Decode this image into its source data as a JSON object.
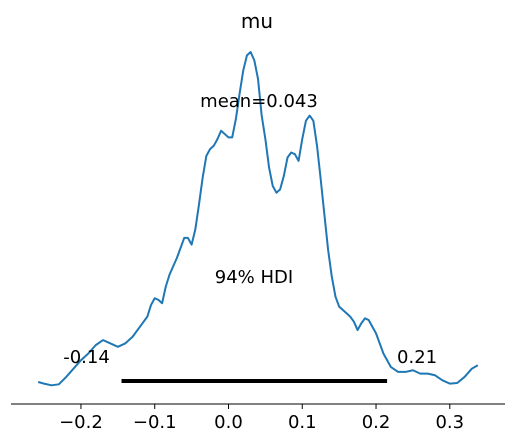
{
  "chart_data": {
    "type": "line",
    "title": "mu",
    "xlabel": "",
    "ylabel": "",
    "xlim": [
      -0.265,
      0.345
    ],
    "ylim": [
      0,
      1
    ],
    "grid": false,
    "x_ticks": [
      "−0.2",
      "−0.1",
      "0.0",
      "0.1",
      "0.2",
      "0.3"
    ],
    "x_tick_values": [
      -0.2,
      -0.1,
      0.0,
      0.1,
      0.2,
      0.3
    ],
    "annotations": {
      "mean_label": "mean=0.043",
      "hdi_label": "94% HDI",
      "hdi_lower_label": "-0.14",
      "hdi_upper_label": "0.21"
    },
    "hdi": [
      -0.145,
      0.215
    ],
    "series": [
      {
        "color": "#1f77b4",
        "x": [
          -0.258,
          -0.25,
          -0.24,
          -0.23,
          -0.22,
          -0.21,
          -0.2,
          -0.19,
          -0.18,
          -0.17,
          -0.16,
          -0.15,
          -0.14,
          -0.13,
          -0.12,
          -0.11,
          -0.105,
          -0.1,
          -0.095,
          -0.09,
          -0.085,
          -0.08,
          -0.07,
          -0.06,
          -0.055,
          -0.05,
          -0.045,
          -0.04,
          -0.035,
          -0.03,
          -0.025,
          -0.02,
          -0.015,
          -0.01,
          -0.005,
          0.0,
          0.005,
          0.01,
          0.015,
          0.02,
          0.025,
          0.03,
          0.035,
          0.04,
          0.045,
          0.05,
          0.055,
          0.06,
          0.065,
          0.07,
          0.075,
          0.08,
          0.085,
          0.09,
          0.095,
          0.1,
          0.105,
          0.11,
          0.115,
          0.12,
          0.125,
          0.13,
          0.135,
          0.14,
          0.145,
          0.15,
          0.16,
          0.165,
          0.17,
          0.175,
          0.18,
          0.185,
          0.19,
          0.2,
          0.21,
          0.22,
          0.23,
          0.24,
          0.25,
          0.26,
          0.27,
          0.28,
          0.29,
          0.3,
          0.31,
          0.32,
          0.33,
          0.338
        ],
        "y": [
          0.015,
          0.01,
          0.005,
          0.008,
          0.03,
          0.055,
          0.08,
          0.1,
          0.125,
          0.14,
          0.13,
          0.12,
          0.13,
          0.15,
          0.18,
          0.21,
          0.245,
          0.265,
          0.26,
          0.25,
          0.3,
          0.335,
          0.385,
          0.445,
          0.445,
          0.425,
          0.47,
          0.545,
          0.625,
          0.69,
          0.71,
          0.72,
          0.74,
          0.765,
          0.755,
          0.745,
          0.745,
          0.8,
          0.875,
          0.945,
          0.99,
          1.0,
          0.975,
          0.92,
          0.81,
          0.74,
          0.655,
          0.6,
          0.58,
          0.59,
          0.63,
          0.685,
          0.7,
          0.695,
          0.675,
          0.74,
          0.795,
          0.81,
          0.795,
          0.72,
          0.62,
          0.515,
          0.41,
          0.33,
          0.27,
          0.24,
          0.22,
          0.21,
          0.195,
          0.17,
          0.19,
          0.205,
          0.2,
          0.16,
          0.1,
          0.06,
          0.045,
          0.045,
          0.05,
          0.04,
          0.04,
          0.035,
          0.02,
          0.01,
          0.012,
          0.03,
          0.055,
          0.065
        ]
      }
    ]
  }
}
